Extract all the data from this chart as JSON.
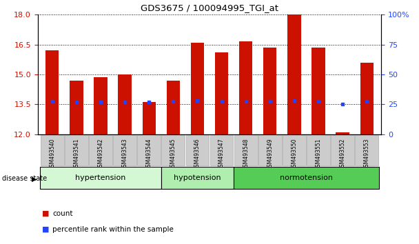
{
  "title": "GDS3675 / 100094995_TGI_at",
  "samples": [
    "GSM493540",
    "GSM493541",
    "GSM493542",
    "GSM493543",
    "GSM493544",
    "GSM493545",
    "GSM493546",
    "GSM493547",
    "GSM493548",
    "GSM493549",
    "GSM493550",
    "GSM493551",
    "GSM493552",
    "GSM493553"
  ],
  "bar_values": [
    16.2,
    14.7,
    14.85,
    15.0,
    13.6,
    14.7,
    16.6,
    16.1,
    16.65,
    16.35,
    18.0,
    16.35,
    12.1,
    15.6
  ],
  "percentile_values": [
    13.65,
    13.6,
    13.6,
    13.6,
    13.6,
    13.65,
    13.7,
    13.65,
    13.65,
    13.65,
    13.7,
    13.65,
    13.5,
    13.65
  ],
  "ymin": 12,
  "ymax": 18,
  "yticks_left": [
    12,
    13.5,
    15,
    16.5,
    18
  ],
  "yticks_right_vals": [
    0,
    25,
    50,
    75,
    100
  ],
  "yticks_right_labels": [
    "0",
    "25",
    "50",
    "75",
    "100%"
  ],
  "bar_color": "#cc1100",
  "percentile_color": "#2244ff",
  "bar_bottom": 12,
  "tick_color_left": "#cc1100",
  "tick_color_right": "#2244ff",
  "grid_linestyle": "dotted",
  "legend_count_label": "count",
  "legend_percentile_label": "percentile rank within the sample",
  "disease_state_label": "disease state",
  "bar_width": 0.55,
  "group_specs": [
    {
      "label": "hypertension",
      "start": 0,
      "end": 4,
      "color": "#d4f7d4"
    },
    {
      "label": "hypotension",
      "start": 5,
      "end": 7,
      "color": "#b0eeb0"
    },
    {
      "label": "normotension",
      "start": 8,
      "end": 13,
      "color": "#55cc55"
    }
  ]
}
